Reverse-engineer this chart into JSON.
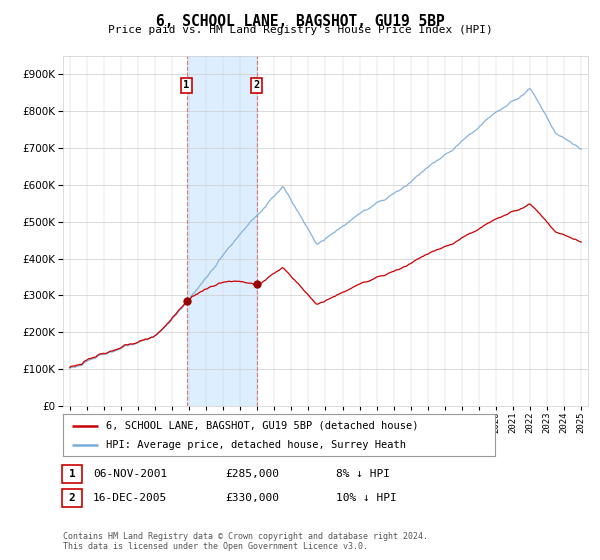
{
  "title": "6, SCHOOL LANE, BAGSHOT, GU19 5BP",
  "subtitle": "Price paid vs. HM Land Registry's House Price Index (HPI)",
  "legend_line1": "6, SCHOOL LANE, BAGSHOT, GU19 5BP (detached house)",
  "legend_line2": "HPI: Average price, detached house, Surrey Heath",
  "sale1_label": "1",
  "sale1_date": "06-NOV-2001",
  "sale1_price": "£285,000",
  "sale1_hpi": "8% ↓ HPI",
  "sale2_label": "2",
  "sale2_date": "16-DEC-2005",
  "sale2_price": "£330,000",
  "sale2_hpi": "10% ↓ HPI",
  "footer": "Contains HM Land Registry data © Crown copyright and database right 2024.\nThis data is licensed under the Open Government Licence v3.0.",
  "sale1_year": 2001.85,
  "sale1_value": 285000,
  "sale2_year": 2005.96,
  "sale2_value": 330000,
  "price_line_color": "#cc0000",
  "hpi_line_color": "#7aabdb",
  "highlight_color": "#ddeeff",
  "vline_color": "#cc6666",
  "sale_marker_color": "#990000",
  "ylim_min": 0,
  "ylim_max": 950000,
  "background_color": "#ffffff",
  "grid_color": "#cccccc"
}
